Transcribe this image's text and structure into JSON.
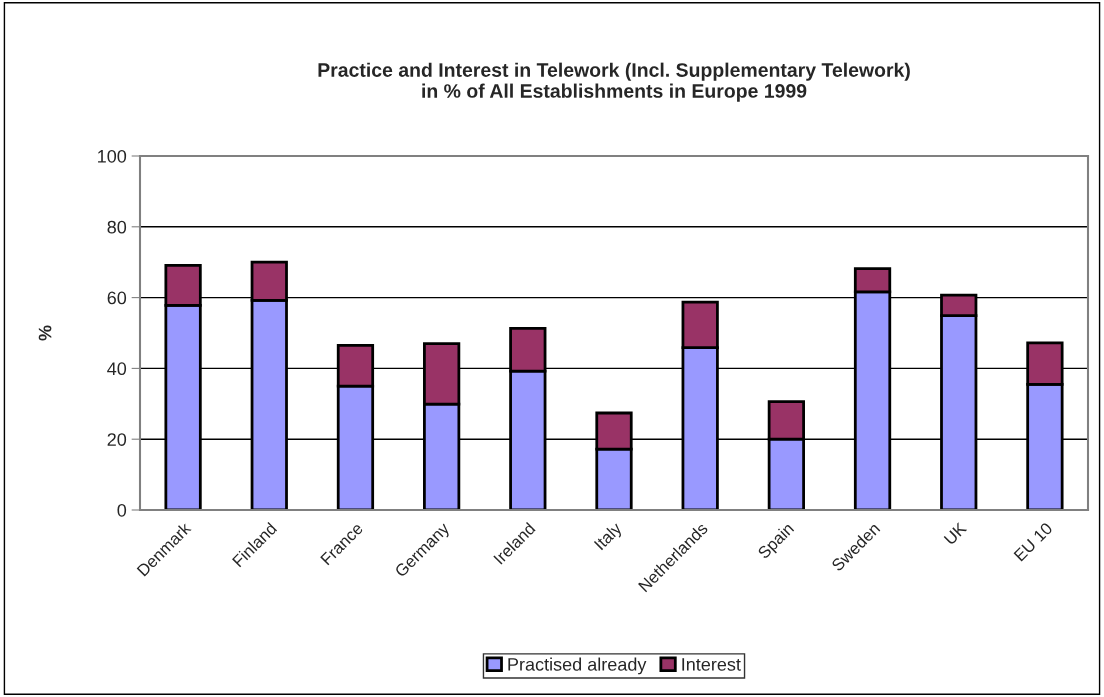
{
  "chart_data": {
    "type": "bar",
    "title": "Practice and Interest in Telework (Incl. Supplementary Telework)\nin % of All Establishments in Europe 1999",
    "ylabel": "%",
    "categories": [
      "Denmark",
      "Finland",
      "France",
      "Germany",
      "Ireland",
      "Italy",
      "Netherlands",
      "Spain",
      "Sweden",
      "UK",
      "EU 10"
    ],
    "series": [
      {
        "name": "Practised already",
        "color": "#9999ff",
        "values": [
          57.8,
          59.2,
          35.0,
          29.9,
          39.2,
          17.2,
          45.9,
          20.0,
          61.6,
          54.9,
          35.5
        ]
      },
      {
        "name": "Interest",
        "color": "#993366",
        "values": [
          11.3,
          10.8,
          11.5,
          17.1,
          12.1,
          10.2,
          12.8,
          10.6,
          6.6,
          5.8,
          11.7
        ]
      }
    ],
    "stacked": true,
    "ylim": [
      0,
      100
    ],
    "yticks": [
      0,
      20,
      40,
      60,
      80,
      100
    ],
    "grid": "y",
    "legend": "bottom"
  }
}
